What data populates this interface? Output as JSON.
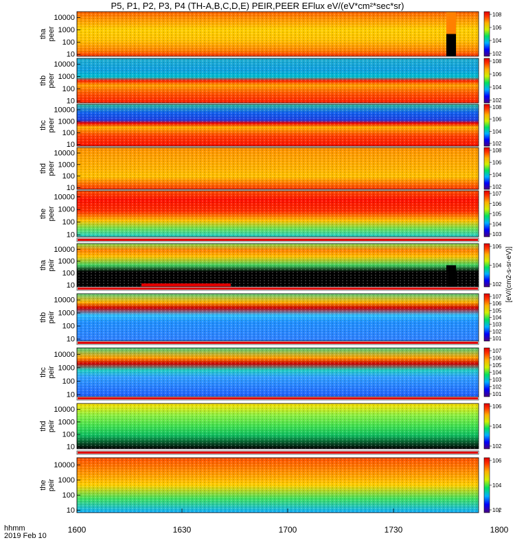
{
  "title": "P5, P1, P2, P3, P4 (TH-A,B,C,D,E) PEIR,PEER EFlux eV/(eV*cm²*sec*sr)",
  "time_axis": {
    "label_line1": "hhmm",
    "label_line2": "2019 Feb 10",
    "ticks": [
      "1600",
      "1630",
      "1700",
      "1730",
      "1800"
    ]
  },
  "colorbar_unit": "[eV/(cm2-s-sr-eV)]",
  "chart_data": [
    {
      "type": "heatmap",
      "probe": "tha",
      "species": "peer",
      "ytick_labels": [
        "10000",
        "1000",
        "100",
        "10"
      ],
      "ylim": [
        7,
        30000
      ],
      "yscale": "log",
      "colorbar_ticks": [
        "10^8",
        "10^6",
        "10^4",
        "10^2"
      ],
      "clim_log10": [
        1.5,
        8.3
      ],
      "description_bands": [
        2.2,
        3.6
      ]
    },
    {
      "type": "heatmap",
      "probe": "thb",
      "species": "peer",
      "ytick_labels": [
        "10000",
        "1000",
        "100",
        "10"
      ],
      "ylim": [
        7,
        30000
      ],
      "yscale": "log",
      "colorbar_ticks": [
        "10^8",
        "10^6",
        "10^4",
        "10^2"
      ],
      "clim_log10": [
        1.5,
        8.3
      ]
    },
    {
      "type": "heatmap",
      "probe": "thc",
      "species": "peer",
      "ytick_labels": [
        "10000",
        "1000",
        "100",
        "10"
      ],
      "ylim": [
        7,
        30000
      ],
      "yscale": "log",
      "colorbar_ticks": [
        "10^8",
        "10^6",
        "10^4",
        "10^2"
      ],
      "clim_log10": [
        1.5,
        8.3
      ]
    },
    {
      "type": "heatmap",
      "probe": "thd",
      "species": "peer",
      "ytick_labels": [
        "10000",
        "1000",
        "100",
        "10"
      ],
      "ylim": [
        7,
        30000
      ],
      "yscale": "log",
      "colorbar_ticks": [
        "10^8",
        "10^6",
        "10^4",
        "10^2"
      ],
      "clim_log10": [
        1.5,
        8.3
      ]
    },
    {
      "type": "heatmap",
      "probe": "the",
      "species": "peer",
      "ytick_labels": [
        "10000",
        "1000",
        "100",
        "10"
      ],
      "ylim": [
        7,
        30000
      ],
      "yscale": "log",
      "colorbar_ticks": [
        "10^7",
        "10^6",
        "10^5",
        "10^4",
        "10^3"
      ],
      "clim_log10": [
        2.5,
        7.5
      ]
    },
    {
      "type": "heatmap",
      "probe": "tha",
      "species": "peir",
      "ytick_labels": [
        "10000",
        "1000",
        "100",
        "10"
      ],
      "ylim": [
        7,
        30000
      ],
      "yscale": "log",
      "colorbar_ticks": [
        "10^6",
        "10^4",
        "10^2"
      ],
      "clim_log10": [
        1.5,
        7
      ]
    },
    {
      "type": "heatmap",
      "probe": "thb",
      "species": "peir",
      "ytick_labels": [
        "10000",
        "1000",
        "100",
        "10"
      ],
      "ylim": [
        7,
        30000
      ],
      "yscale": "log",
      "colorbar_ticks": [
        "10^7",
        "10^6",
        "10^5",
        "10^4",
        "10^3",
        "10^2",
        "10^1"
      ],
      "clim_log10": [
        0.8,
        7.4
      ]
    },
    {
      "type": "heatmap",
      "probe": "thc",
      "species": "peir",
      "ytick_labels": [
        "10000",
        "1000",
        "100",
        "10"
      ],
      "ylim": [
        7,
        30000
      ],
      "yscale": "log",
      "colorbar_ticks": [
        "10^7",
        "10^6",
        "10^5",
        "10^4",
        "10^3",
        "10^2",
        "10^1"
      ],
      "clim_log10": [
        0.8,
        7.4
      ]
    },
    {
      "type": "heatmap",
      "probe": "thd",
      "species": "peir",
      "ytick_labels": [
        "10000",
        "1000",
        "100",
        "10"
      ],
      "ylim": [
        7,
        30000
      ],
      "yscale": "log",
      "colorbar_ticks": [
        "10^6",
        "10^4",
        "10^2"
      ],
      "clim_log10": [
        1.5,
        6.5
      ]
    },
    {
      "type": "heatmap",
      "probe": "the",
      "species": "peir",
      "ytick_labels": [
        "10000",
        "1000",
        "100",
        "10"
      ],
      "ylim": [
        7,
        30000
      ],
      "yscale": "log",
      "colorbar_ticks": [
        "10^6",
        "10^4",
        "10^2"
      ],
      "clim_log10": [
        1.5,
        6.5
      ]
    }
  ]
}
